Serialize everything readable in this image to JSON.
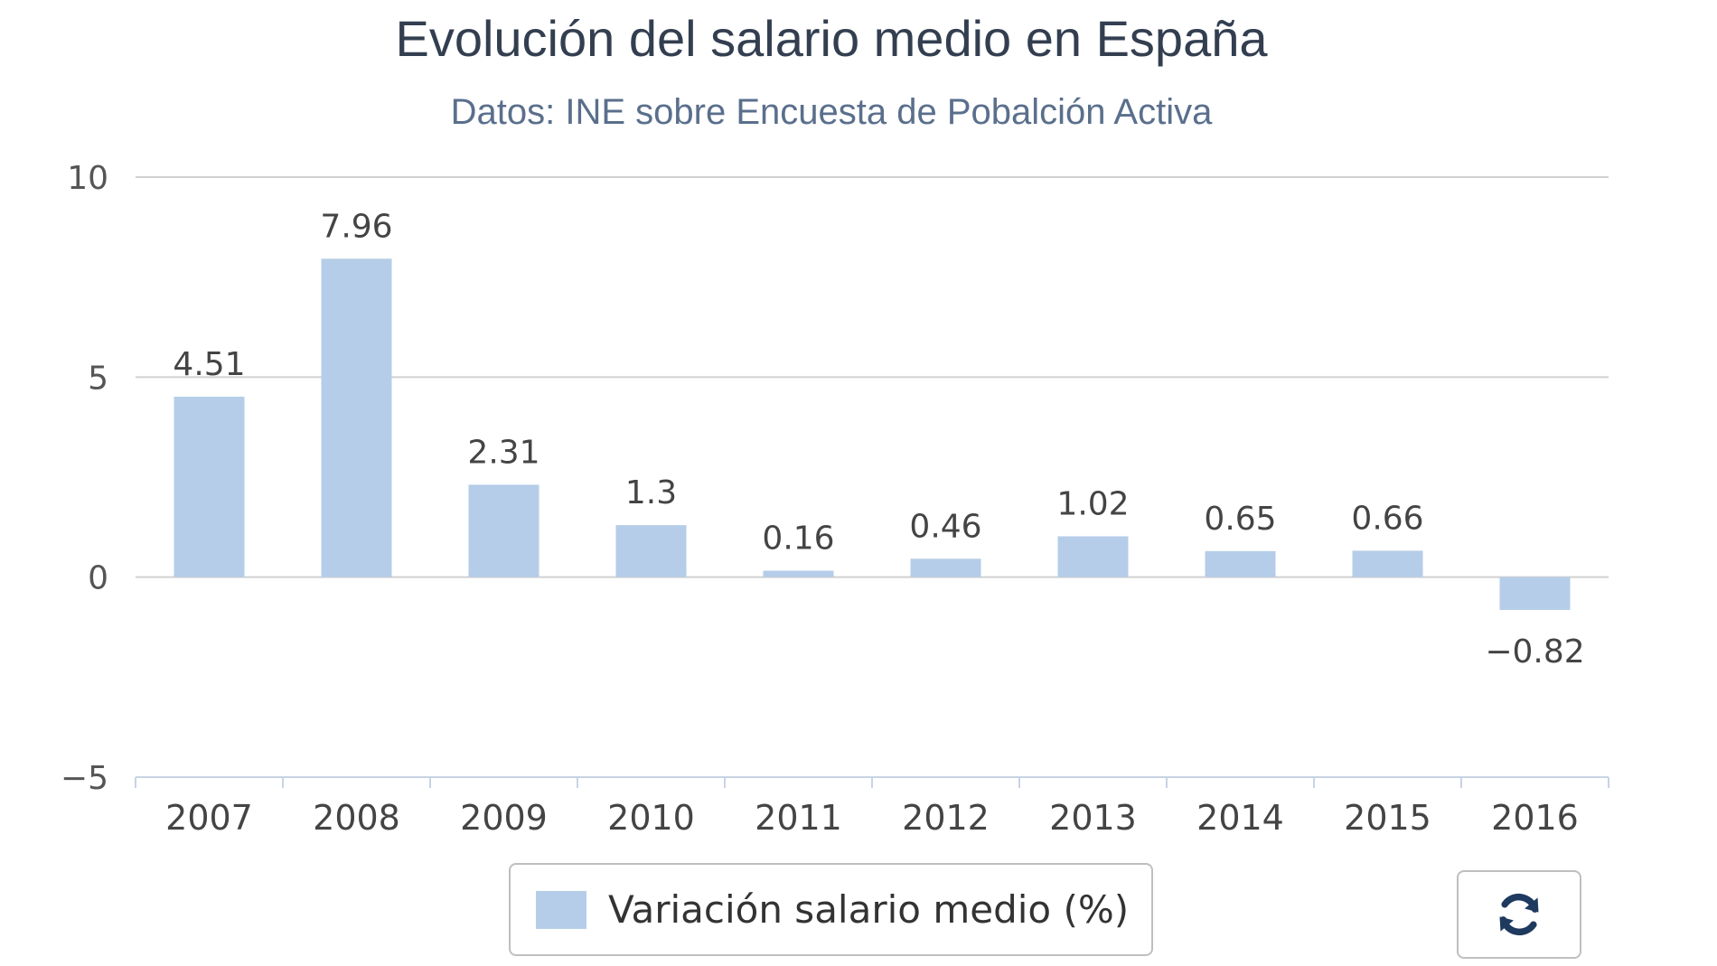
{
  "chart_data": {
    "type": "bar",
    "title": "Evolución del salario medio en España",
    "subtitle": "Datos: INE sobre Encuesta de Pobalción Activa",
    "categories": [
      "2007",
      "2008",
      "2009",
      "2010",
      "2011",
      "2012",
      "2013",
      "2014",
      "2015",
      "2016"
    ],
    "series": [
      {
        "name": "Variación salario medio (%)",
        "values": [
          4.51,
          7.96,
          2.31,
          1.3,
          0.16,
          0.46,
          1.02,
          0.65,
          0.66,
          -0.82
        ],
        "labels": [
          "4.51",
          "7.96",
          "2.31",
          "1.3",
          "0.16",
          "0.46",
          "1.02",
          "0.65",
          "0.66",
          "−0.82"
        ]
      }
    ],
    "ylim": [
      -5,
      10
    ],
    "yticks": [
      10,
      5,
      0,
      -5
    ],
    "ytick_labels": [
      "10",
      "5",
      "0",
      "−5"
    ],
    "grid": true,
    "legend": "bottom-center",
    "bar_color": "#b5cde8"
  },
  "toolbar": {
    "refresh_icon": "refresh-icon"
  }
}
